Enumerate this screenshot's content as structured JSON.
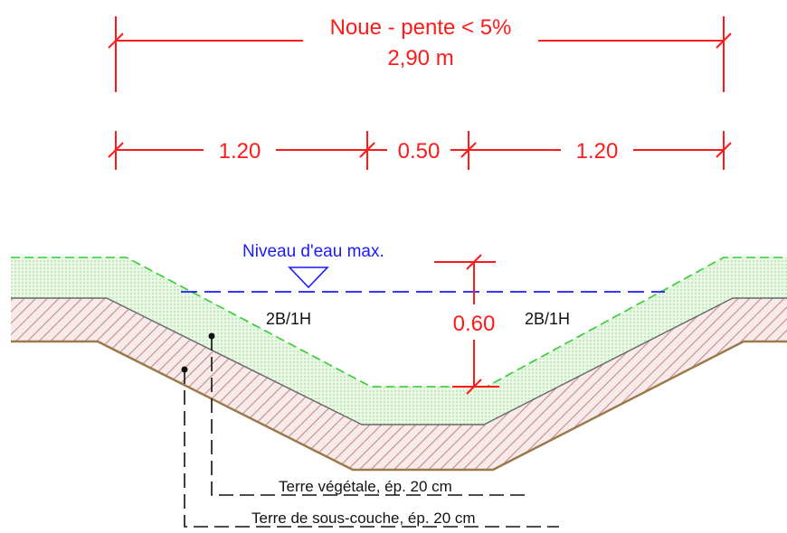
{
  "title": "Noue - pente < 5%",
  "total_width": "2,90 m",
  "dimensions": {
    "left_bank": "1.20",
    "bottom": "0.50",
    "right_bank": "1.20",
    "depth": "0.60"
  },
  "water_level": "Niveau d'eau max.",
  "slope_left": "2B/1H",
  "slope_right": "2B/1H",
  "layers": {
    "topsoil": "Terre végétale, ép. 20 cm",
    "subsoil": "Terre de sous-couche, ép. 20 cm"
  },
  "colors": {
    "dimension": "#ff1a1a",
    "water": "#1a1aff",
    "topsoil_fill": "#e6f7e0",
    "topsoil_edge": "#33cc33",
    "subsoil_fill": "#f5e6e6",
    "subsoil_hatch": "#c98a8a",
    "ground_line": "#9b7a4a"
  }
}
